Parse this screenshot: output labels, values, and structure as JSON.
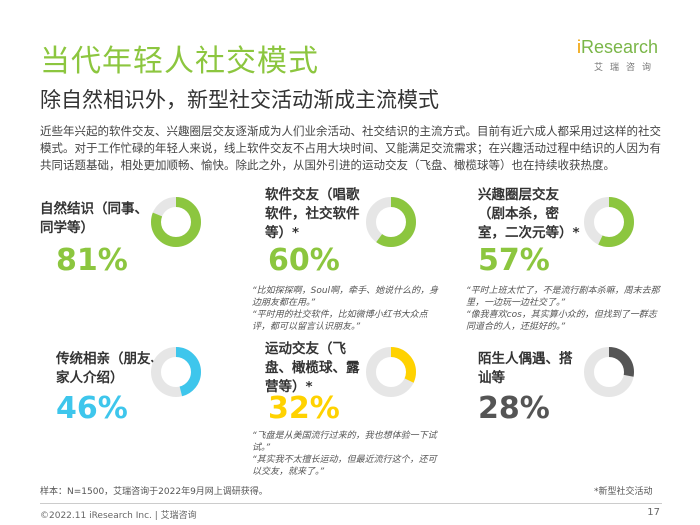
{
  "title": "当代年轻人社交模式",
  "subtitle": "除自然相识外，新型社交活动渐成主流模式",
  "logo": {
    "brand_prefix": "i",
    "brand_rest": "Research",
    "sub": "艾瑞咨询"
  },
  "intro": "近些年兴起的软件交友、兴趣圈层交友逐渐成为人们业余活动、社交结识的主流方式。目前有近六成人都采用过这样的社交模式。对于工作忙碌的年轻人来说，线上软件交友不占用大块时间、又能满足交流需求；在兴趣活动过程中结识的人因为有共同话题基础，相处更加顺畅、愉快。除此之外，从国外引进的运动交友（飞盘、橄榄球等）也在持续收获热度。",
  "cards": [
    {
      "label": "自然结识（同事、同学等）",
      "pct_text": "81%",
      "value": 81,
      "color": "#8cc63f",
      "quote": ""
    },
    {
      "label": "软件交友（唱歌软件，社交软件等）*",
      "pct_text": "60%",
      "value": 60,
      "color": "#8cc63f",
      "quote": "“比如探探啊，Soul啊，牵手、她说什么的，身边朋友都在用。”\n“平时用的社交软件，比如微博小红书大众点评，都可以留言认识朋友。”"
    },
    {
      "label": "兴趣圈层交友（剧本杀，密室，二次元等）*",
      "pct_text": "57%",
      "value": 57,
      "color": "#8cc63f",
      "quote": "“平时上班太忙了，不是流行剧本杀嘛，周末去那里，一边玩一边社交了。”\n“像我喜欢cos，其实算小众的，但找到了一群志同道合的人，还挺好的。”"
    },
    {
      "label": "传统相亲（朋友、家人介绍）",
      "pct_text": "46%",
      "value": 46,
      "color": "#3ec6ec",
      "quote": ""
    },
    {
      "label": "运动交友（飞盘、橄榄球、露营等）*",
      "pct_text": "32%",
      "value": 32,
      "color": "#ffd200",
      "quote": "“飞盘是从美国流行过来的，我也想体验一下试试。”\n“其实我不太擅长运动，但最近流行这个，还可以交友，就来了。”"
    },
    {
      "label": "陌生人偶遇、搭讪等",
      "pct_text": "28%",
      "value": 28,
      "color": "#555555",
      "quote": ""
    }
  ],
  "track_color": "#e6e6e6",
  "sample_note": "样本：N=1500，艾瑞咨询于2022年9月网上调研获得。",
  "footnote": "*新型社交活动",
  "copyright": "©2022.11 iResearch Inc. | 艾瑞咨询",
  "page_number": "17"
}
